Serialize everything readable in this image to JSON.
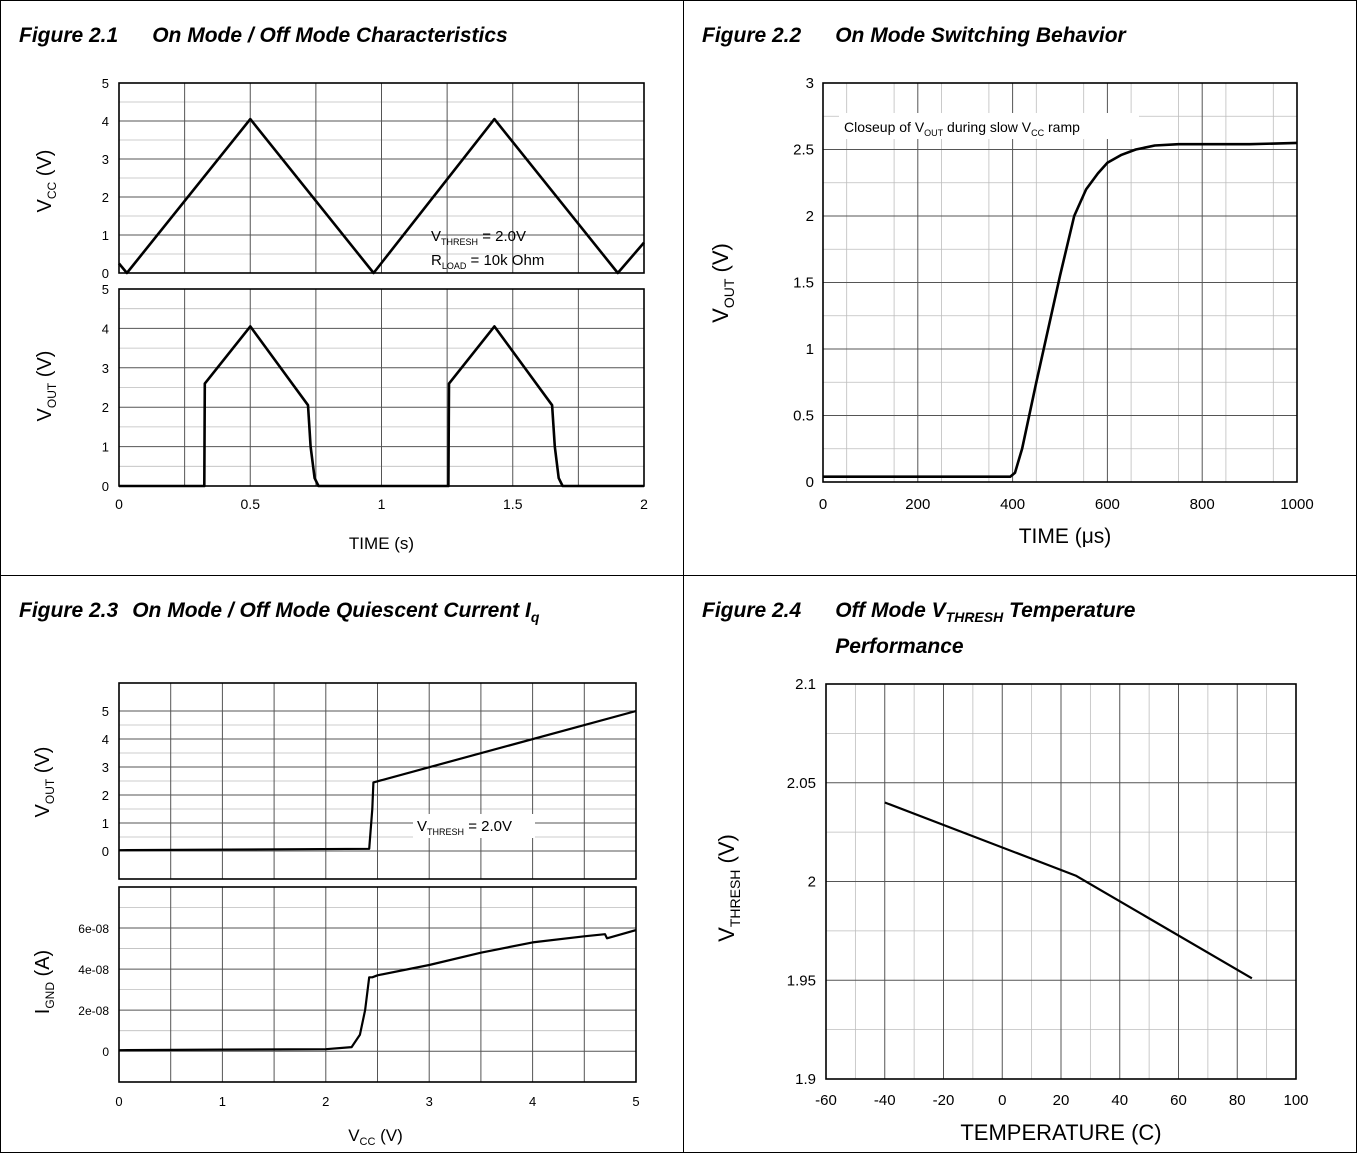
{
  "figures": [
    {
      "number": "Figure 2.1",
      "title": "On Mode / Off Mode Characteristics",
      "chart_data": [
        {
          "type": "line",
          "ylabel_main": "V",
          "ylabel_sub": "CC",
          "ylabel_unit": "(V)",
          "ylim": [
            0,
            5
          ],
          "yticks": [
            "0",
            "1",
            "2",
            "3",
            "4",
            "5"
          ],
          "xlim": [
            0,
            2
          ],
          "grid": true,
          "series": [
            {
              "x": [
                0,
                0.03,
                0.5,
                0.97,
                1.43,
                1.9,
                2.0
              ],
              "y": [
                0.25,
                0.0,
                4.05,
                0.0,
                4.05,
                0.0,
                0.8
              ]
            }
          ],
          "annotations": [
            {
              "main": "V",
              "sub": "THRESH",
              "rest": " = 2.0V"
            },
            {
              "main": "R",
              "sub": "LOAD",
              "rest": " = 10k Ohm"
            }
          ]
        },
        {
          "type": "line",
          "ylabel_main": "V",
          "ylabel_sub": "OUT",
          "ylabel_unit": "(V)",
          "ylim": [
            0,
            5
          ],
          "yticks": [
            "0",
            "1",
            "2",
            "3",
            "4",
            "5"
          ],
          "xlim": [
            0,
            2
          ],
          "xticks": [
            "0",
            "0.5",
            "1",
            "1.5",
            "2"
          ],
          "xtick_values": [
            0,
            0.5,
            1,
            1.5,
            2
          ],
          "xlabel": "TIME (s)",
          "grid": true,
          "series": [
            {
              "x": [
                0,
                0.325,
                0.327,
                0.5,
                0.72,
                0.73,
                0.745,
                0.76,
                1.255,
                1.257,
                1.43,
                1.65,
                1.66,
                1.675,
                1.69,
                2.0
              ],
              "y": [
                0,
                0,
                2.6,
                4.05,
                2.05,
                1.0,
                0.2,
                0,
                0,
                2.6,
                4.05,
                2.05,
                1.0,
                0.2,
                0,
                0
              ]
            }
          ]
        }
      ]
    },
    {
      "number": "Figure 2.2",
      "title": "On Mode Switching Behavior",
      "chart_data": {
        "type": "line",
        "ylabel_main": "V",
        "ylabel_sub": "OUT",
        "ylabel_unit": "(V)",
        "xlabel": "TIME  (μs)",
        "xlim": [
          0,
          1000
        ],
        "ylim": [
          0,
          3
        ],
        "xticks": [
          "0",
          "200",
          "400",
          "600",
          "800",
          "1000"
        ],
        "xtick_values": [
          0,
          200,
          400,
          600,
          800,
          1000
        ],
        "yticks": [
          "0",
          "0.5",
          "1",
          "1.5",
          "2",
          "2.5",
          "3"
        ],
        "ytick_values": [
          0,
          0.5,
          1,
          1.5,
          2,
          2.5,
          3
        ],
        "grid": true,
        "annotation": {
          "pre": "Closeup of  V",
          "sub1": "OUT",
          "mid": " during slow V",
          "sub2": "CC",
          "post": " ramp"
        },
        "series": [
          {
            "x": [
              0,
              100,
              200,
              300,
              395,
              405,
              420,
              450,
              500,
              530,
              555,
              580,
              600,
              630,
              660,
              700,
              750,
              800,
              900,
              1000
            ],
            "y": [
              0.04,
              0.04,
              0.04,
              0.04,
              0.04,
              0.07,
              0.25,
              0.75,
              1.55,
              2.0,
              2.2,
              2.32,
              2.4,
              2.46,
              2.5,
              2.53,
              2.54,
              2.54,
              2.54,
              2.55
            ]
          }
        ]
      }
    },
    {
      "number": "Figure 2.3",
      "title": "On Mode / Off Mode Quiescent Current I",
      "title_sub": "q",
      "chart_data": [
        {
          "type": "line",
          "ylabel_main": "V",
          "ylabel_sub": "OUT",
          "ylabel_unit": "(V)",
          "xlim": [
            0,
            5
          ],
          "ylim": [
            -1,
            6
          ],
          "yticks": [
            "0",
            "1",
            "2",
            "3",
            "4",
            "5"
          ],
          "ytick_values": [
            0,
            1,
            2,
            3,
            4,
            5
          ],
          "grid": true,
          "annotation": {
            "main": "V",
            "sub": "THRESH",
            "rest": " = 2.0V"
          },
          "series": [
            {
              "x": [
                0,
                2.42,
                2.45,
                2.46,
                5.0
              ],
              "y": [
                0.03,
                0.08,
                1.5,
                2.45,
                5.0
              ]
            }
          ]
        },
        {
          "type": "line",
          "ylabel_main": "I",
          "ylabel_sub": "GND",
          "ylabel_unit": "(A)",
          "xlabel_main": "V",
          "xlabel_sub": "CC",
          "xlabel_unit": " (V)",
          "xlim": [
            0,
            5
          ],
          "ylim": [
            -1.5e-08,
            8e-08
          ],
          "yticks": [
            "0",
            "2e-08",
            "4e-08",
            "6e-08"
          ],
          "ytick_values": [
            0,
            2e-08,
            4e-08,
            6e-08
          ],
          "xticks": [
            "0",
            "1",
            "2",
            "3",
            "4",
            "5"
          ],
          "xtick_values": [
            0,
            1,
            2,
            3,
            4,
            5
          ],
          "grid": true,
          "series": [
            {
              "x": [
                0,
                1.0,
                2.0,
                2.25,
                2.33,
                2.38,
                2.42,
                2.45,
                2.5,
                3.0,
                3.5,
                4.0,
                4.5,
                4.7,
                4.72,
                5.0
              ],
              "y": [
                5e-10,
                8e-10,
                1e-09,
                2e-09,
                8e-09,
                2e-08,
                3.6e-08,
                3.6e-08,
                3.7e-08,
                4.2e-08,
                4.8e-08,
                5.3e-08,
                5.6e-08,
                5.7e-08,
                5.5e-08,
                5.9e-08
              ]
            }
          ]
        }
      ]
    },
    {
      "number": "Figure 2.4",
      "title_pre": "Off Mode V",
      "title_sub": "THRESH",
      "title_post": " Temperature",
      "title_line2": "Performance",
      "chart_data": {
        "type": "line",
        "ylabel_main": "V",
        "ylabel_sub": "THRESH",
        "ylabel_unit": "(V)",
        "xlabel": "TEMPERATURE  (C)",
        "xlim": [
          -60,
          100
        ],
        "ylim": [
          1.9,
          2.1
        ],
        "xticks": [
          "-60",
          "-40",
          "-20",
          "0",
          "20",
          "40",
          "60",
          "80",
          "100"
        ],
        "xtick_values": [
          -60,
          -40,
          -20,
          0,
          20,
          40,
          60,
          80,
          100
        ],
        "yticks": [
          "1.9",
          "1.95",
          "2",
          "2.05",
          "2.1"
        ],
        "ytick_values": [
          1.9,
          1.95,
          2.0,
          2.05,
          2.1
        ],
        "grid": true,
        "series": [
          {
            "x": [
              -40,
              25,
              85
            ],
            "y": [
              2.04,
              2.003,
              1.951
            ]
          }
        ]
      }
    }
  ]
}
